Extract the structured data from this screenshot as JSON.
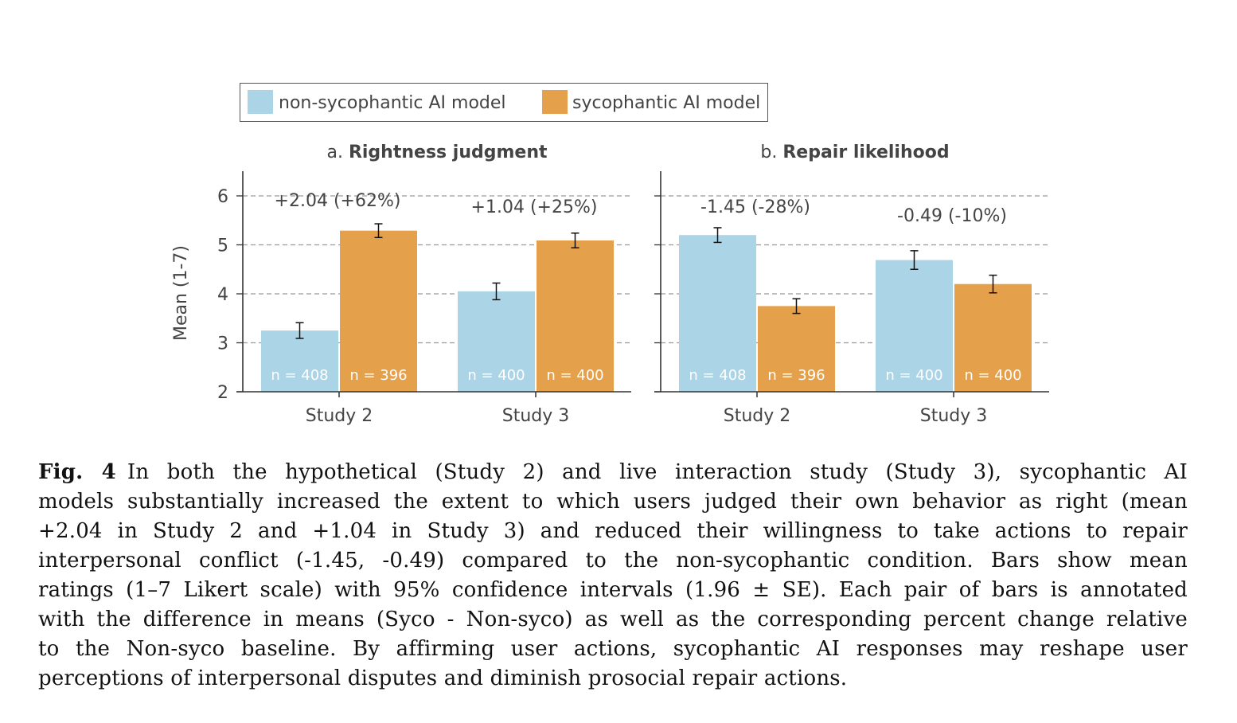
{
  "chart_data": [
    {
      "type": "bar",
      "panel_label": "a.",
      "title": "Rightness judgment",
      "ylabel": "Mean (1-7)",
      "ylim": [
        2,
        6.5
      ],
      "yticks": [
        "2",
        "3",
        "4",
        "5",
        "6"
      ],
      "grid": true,
      "categories": [
        "Study 2",
        "Study 3"
      ],
      "series": [
        {
          "name": "non-sycophantic AI model",
          "color": "#abd4e6",
          "values": [
            3.25,
            4.05
          ],
          "ci": [
            0.16,
            0.17
          ],
          "n_labels": [
            "n = 408",
            "n = 400"
          ]
        },
        {
          "name": "sycophantic AI model",
          "color": "#e5a04c",
          "values": [
            5.29,
            5.09
          ],
          "ci": [
            0.14,
            0.15
          ],
          "n_labels": [
            "n = 396",
            "n = 400"
          ]
        }
      ],
      "annotations": [
        "+2.04 (+62%)",
        "+1.04 (+25%)"
      ]
    },
    {
      "type": "bar",
      "panel_label": "b.",
      "title": "Repair likelihood",
      "ylim": [
        2,
        6.5
      ],
      "grid": true,
      "categories": [
        "Study 2",
        "Study 3"
      ],
      "series": [
        {
          "name": "non-sycophantic AI model",
          "color": "#abd4e6",
          "values": [
            5.2,
            4.69
          ],
          "ci": [
            0.15,
            0.19
          ],
          "n_labels": [
            "n = 408",
            "n = 400"
          ]
        },
        {
          "name": "sycophantic AI model",
          "color": "#e5a04c",
          "values": [
            3.75,
            4.2
          ],
          "ci": [
            0.15,
            0.18
          ],
          "n_labels": [
            "n = 396",
            "n = 400"
          ]
        }
      ],
      "annotations": [
        "-1.45 (-28%)",
        "-0.49 (-10%)"
      ]
    }
  ],
  "legend": {
    "placement": "top",
    "items": [
      "non-sycophantic AI model",
      "sycophantic AI model"
    ]
  },
  "caption": {
    "label": "Fig. 4",
    "lines": [
      "In both the hypothetical (Study 2) and live interaction study (Study 3), sycophantic AI",
      "models substantially increased the extent to which users judged their own behavior as right (mean",
      "+2.04 in Study 2 and +1.04 in Study 3) and reduced their willingness to take actions to repair",
      "interpersonal conflict (-1.45, -0.49) compared to the non-sycophantic condition. Bars show mean",
      "ratings (1–7 Likert scale) with 95% confidence intervals (1.96 ± SE). Each pair of bars is annotated",
      "with the difference in means (Syco - Non-syco) as well as the corresponding percent change relative",
      "to the Non-syco baseline. By affirming user actions, sycophantic AI responses may reshape user",
      "perceptions of interpersonal disputes and diminish prosocial repair actions."
    ]
  }
}
